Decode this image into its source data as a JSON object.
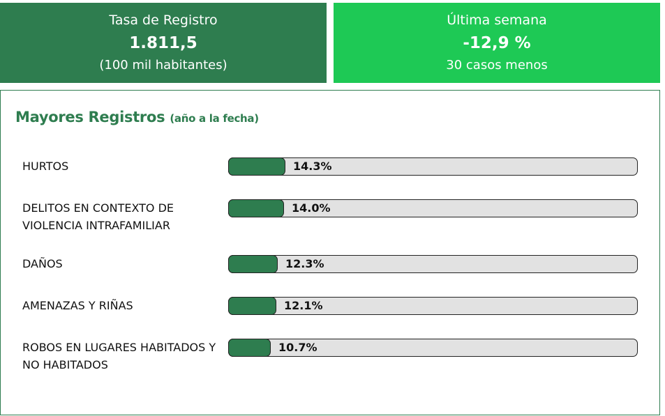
{
  "colors": {
    "primary": "#2e7d4f",
    "accent": "#1ec955"
  },
  "cards": [
    {
      "title": "Tasa de Registro",
      "value": "1.811,5",
      "sub": "(100 mil habitantes)"
    },
    {
      "title": "Última semana",
      "value": "-12,9 %",
      "sub": "30 casos menos"
    }
  ],
  "panel": {
    "title": "Mayores Registros",
    "title_paren": "(año a la fecha)"
  },
  "rows": [
    {
      "label": "HURTOS",
      "percent_text": "14.3%",
      "value": 14.3
    },
    {
      "label": "DELITOS EN CONTEXTO DE VIOLENCIA INTRAFAMILIAR",
      "percent_text": "14.0%",
      "value": 14.0
    },
    {
      "label": "DAÑOS",
      "percent_text": "12.3%",
      "value": 12.3
    },
    {
      "label": "AMENAZAS Y RIÑAS",
      "percent_text": "12.1%",
      "value": 12.1
    },
    {
      "label": "ROBOS EN LUGARES HABITADOS Y NO HABITADOS",
      "percent_text": "10.7%",
      "value": 10.7
    }
  ]
}
